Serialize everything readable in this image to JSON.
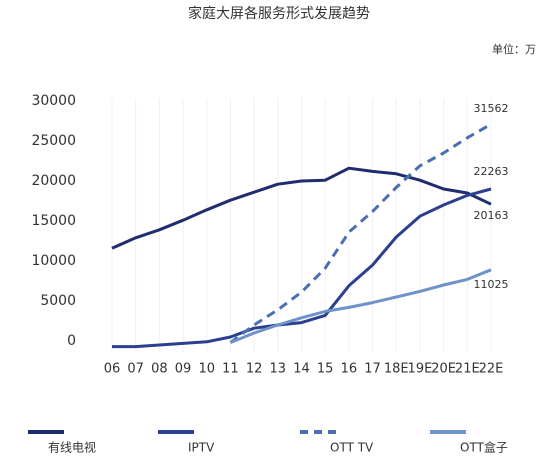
{
  "chart_data": {
    "type": "line",
    "title": "家庭大屏各服务形式发展趋势",
    "unit": "单位：万",
    "categories": [
      "06",
      "07",
      "08",
      "09",
      "10",
      "11",
      "12",
      "13",
      "14",
      "15",
      "16",
      "17",
      "18E",
      "19E",
      "20E",
      "21E",
      "22E"
    ],
    "ylim": [
      -1000,
      32000
    ],
    "yticks": [
      0,
      5000,
      10000,
      15000,
      20000,
      25000,
      30000
    ],
    "grid": true,
    "legend": "bottom",
    "series": [
      {
        "name": "有线电视",
        "color": "#1f2d6e",
        "dash": false,
        "values": [
          11600,
          12900,
          13900,
          15100,
          16400,
          17600,
          18600,
          19600,
          20000,
          20100,
          21600,
          21200,
          20900,
          20100,
          19000,
          18500,
          17100
        ]
      },
      {
        "name": "IPTV",
        "color": "#2a3f8f",
        "dash": false,
        "values": [
          -700,
          -700,
          -500,
          -300,
          -100,
          500,
          1600,
          2000,
          2300,
          3200,
          6900,
          9500,
          13000,
          15600,
          17000,
          18200,
          19000
        ]
      },
      {
        "name": "OTT TV",
        "color": "#4a6eb0",
        "dash": true,
        "values": [
          null,
          null,
          null,
          null,
          null,
          -200,
          2000,
          3900,
          6100,
          9100,
          13600,
          16200,
          19200,
          21900,
          23500,
          25400,
          27100
        ]
      },
      {
        "name": "OTT盒子",
        "color": "#6e93c9",
        "dash": false,
        "values": [
          null,
          null,
          null,
          null,
          null,
          -200,
          1000,
          2000,
          2900,
          3700,
          4200,
          4800,
          5500,
          6200,
          7000,
          7700,
          8900
        ]
      }
    ],
    "annotations": [
      "31562",
      "22263",
      "20163",
      "11025"
    ]
  }
}
